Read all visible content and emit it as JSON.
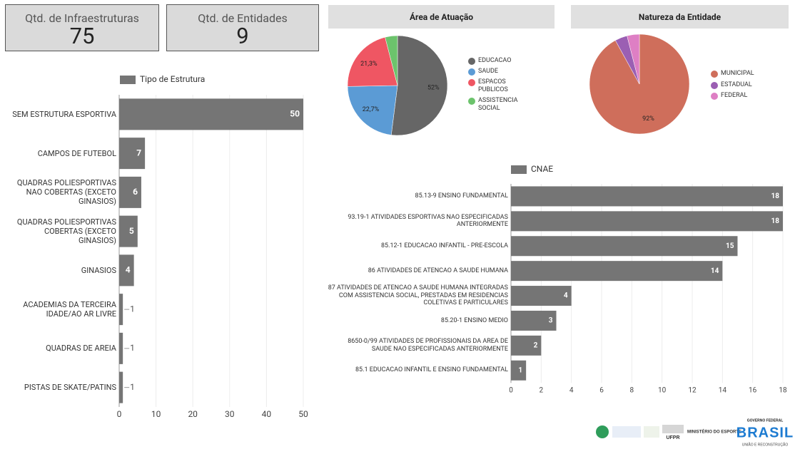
{
  "kpis": [
    {
      "label": "Qtd. de Infraestruturas",
      "value": 75
    },
    {
      "label": "Qtd. de Entidades",
      "value": 9
    }
  ],
  "chart_data": [
    {
      "type": "hbar",
      "categories": [
        "SEM ESTRUTURA ESPORTIVA",
        "CAMPOS DE FUTEBOL",
        "QUADRAS POLIESPORTIVAS NAO COBERTAS (EXCETO GINASIOS)",
        "QUADRAS POLIESPORTIVAS COBERTAS (EXCETO GINASIOS)",
        "GINASIOS",
        "ACADEMIAS DA TERCEIRA IDADE/AO AR LIVRE",
        "QUADRAS DE AREIA",
        "PISTAS DE SKATE/PATINS"
      ],
      "series": [
        {
          "name": "Tipo de Estrutura",
          "color": "#757575",
          "values": [
            50,
            7,
            6,
            5,
            4,
            1,
            1,
            1
          ]
        }
      ],
      "xlim": [
        0,
        50
      ],
      "xticks": [
        0,
        10,
        20,
        30,
        40,
        50
      ],
      "grid": true
    },
    {
      "type": "pie",
      "title": "Área de Atuação",
      "categories": [
        "EDUCACAO",
        "SAUDE",
        "ESPACOS PUBLICOS",
        "ASSISTENCIA SOCIAL"
      ],
      "values": [
        52,
        22.7,
        21.3,
        4
      ],
      "value_labels": [
        "52%",
        "22,7%",
        "21,3%",
        null
      ],
      "colors": [
        "#666666",
        "#5b9bd5",
        "#ef5663",
        "#6cc36c"
      ]
    },
    {
      "type": "pie",
      "title": "Natureza da Entidade",
      "categories": [
        "MUNICIPAL",
        "ESTADUAL",
        "FEDERAL"
      ],
      "values": [
        92,
        4,
        4
      ],
      "value_labels": [
        "92%",
        null,
        null
      ],
      "colors": [
        "#cf6e5b",
        "#9b5fb3",
        "#de7fc4"
      ]
    },
    {
      "type": "hbar",
      "categories": [
        "85.13-9 ENSINO FUNDAMENTAL",
        "93.19-1 ATIVIDADES ESPORTIVAS NAO ESPECIFICADAS ANTERIORMENTE",
        "85.12-1 EDUCACAO INFANTIL - PRE-ESCOLA",
        "86 ATIVIDADES DE ATENCAO A SAUDE HUMANA",
        "87 ATIVIDADES DE ATENCAO A SAUDE HUMANA INTEGRADAS COM ASSISTENCIA SOCIAL, PRESTADAS EM RESIDENCIAS COLETIVAS E PARTICULARES",
        "85.20-1 ENSINO MEDIO",
        "8650-0/99 ATIVIDADES DE PROFISSIONAIS DA AREA DE SAUDE NAO ESPECIFICADAS ANTERIORMENTE",
        "85.1 EDUCACAO INFANTIL E ENSINO FUNDAMENTAL"
      ],
      "series": [
        {
          "name": "CNAE",
          "color": "#757575",
          "values": [
            18,
            18,
            15,
            14,
            4,
            3,
            2,
            1
          ]
        }
      ],
      "xlim": [
        0,
        18
      ],
      "xticks": [
        0,
        2,
        4,
        6,
        8,
        10,
        12,
        14,
        16,
        18
      ],
      "grid": true
    }
  ],
  "footer": {
    "university": "UFPR",
    "ministry": "MINISTÉRIO DO ESPORTE",
    "government": "GOVERNO FEDERAL",
    "country": "BRASIL",
    "motto": "UNIÃO E RECONSTRUÇÃO"
  }
}
